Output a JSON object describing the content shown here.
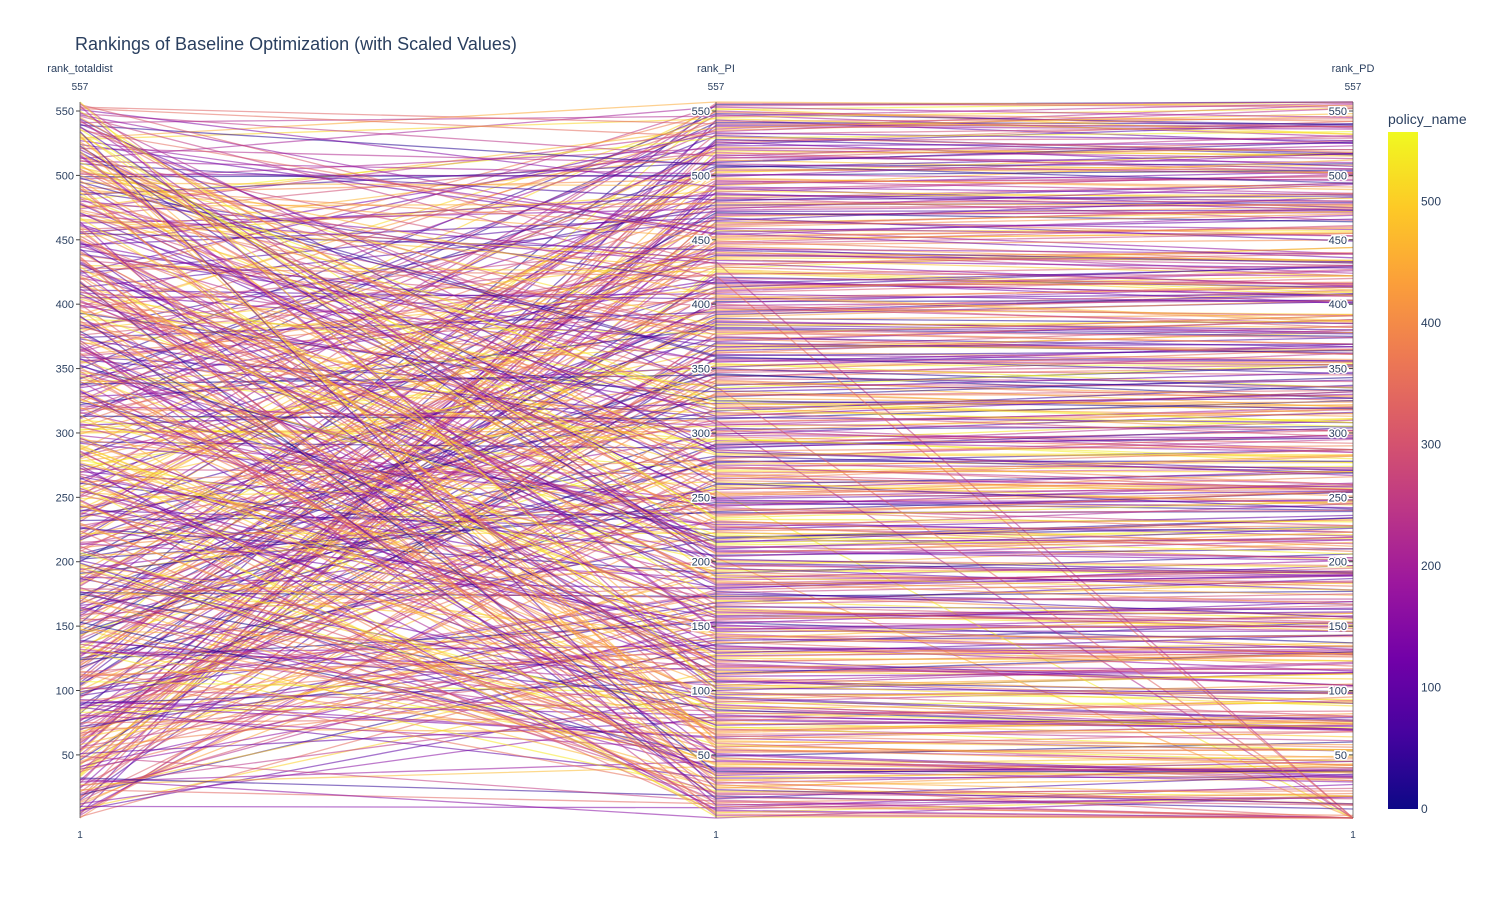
{
  "chart_data": {
    "type": "parallel_coordinates",
    "title": "Rankings of Baseline Optimization (with Scaled Values)",
    "n_lines": 557,
    "dimensions": [
      {
        "label": "rank_totaldist",
        "range": [
          1,
          557
        ],
        "max_label": "557",
        "min_label": "1",
        "ticks": [
          50,
          100,
          150,
          200,
          250,
          300,
          350,
          400,
          450,
          500,
          550
        ]
      },
      {
        "label": "rank_PI",
        "range": [
          1,
          557
        ],
        "max_label": "557",
        "min_label": "1",
        "ticks": [
          50,
          100,
          150,
          200,
          250,
          300,
          350,
          400,
          450,
          500,
          550
        ]
      },
      {
        "label": "rank_PD",
        "range": [
          1,
          557
        ],
        "max_label": "557",
        "min_label": "1",
        "ticks": [
          50,
          100,
          150,
          200,
          250,
          300,
          350,
          400,
          450,
          500,
          550
        ]
      }
    ],
    "color_dimension": "policy_name",
    "colorscale": "plasma",
    "colorbar": {
      "title": "policy_name",
      "range": [
        0,
        557
      ],
      "ticks": [
        0,
        100,
        200,
        300,
        400,
        500
      ]
    },
    "colorscale_stops": [
      "#0d0887",
      "#46039f",
      "#7201a8",
      "#9c179e",
      "#bd3786",
      "#d8576b",
      "#ed7953",
      "#fb9f3a",
      "#fdca26",
      "#f0f921"
    ]
  }
}
